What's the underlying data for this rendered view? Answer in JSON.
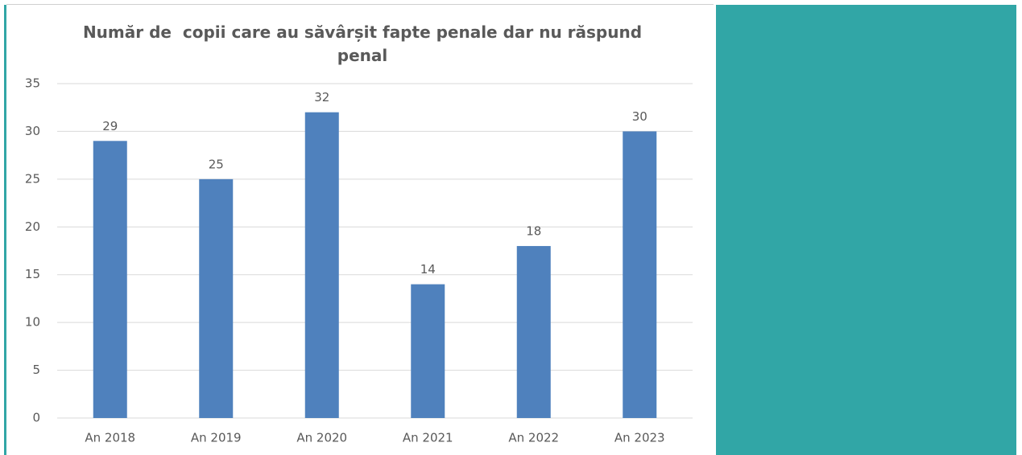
{
  "chart_data": {
    "type": "bar",
    "title": "Număr de  copii care au săvârșit fapte penale dar nu răspund penal",
    "categories": [
      "An 2018",
      "An 2019",
      "An 2020",
      "An 2021",
      "An 2022",
      "An 2023"
    ],
    "values": [
      29,
      25,
      32,
      14,
      18,
      30
    ],
    "color": "#4f81bd",
    "ylim": [
      0,
      35
    ],
    "yticks": [
      0,
      5,
      10,
      15,
      20,
      25,
      30,
      35
    ],
    "grid": true
  }
}
